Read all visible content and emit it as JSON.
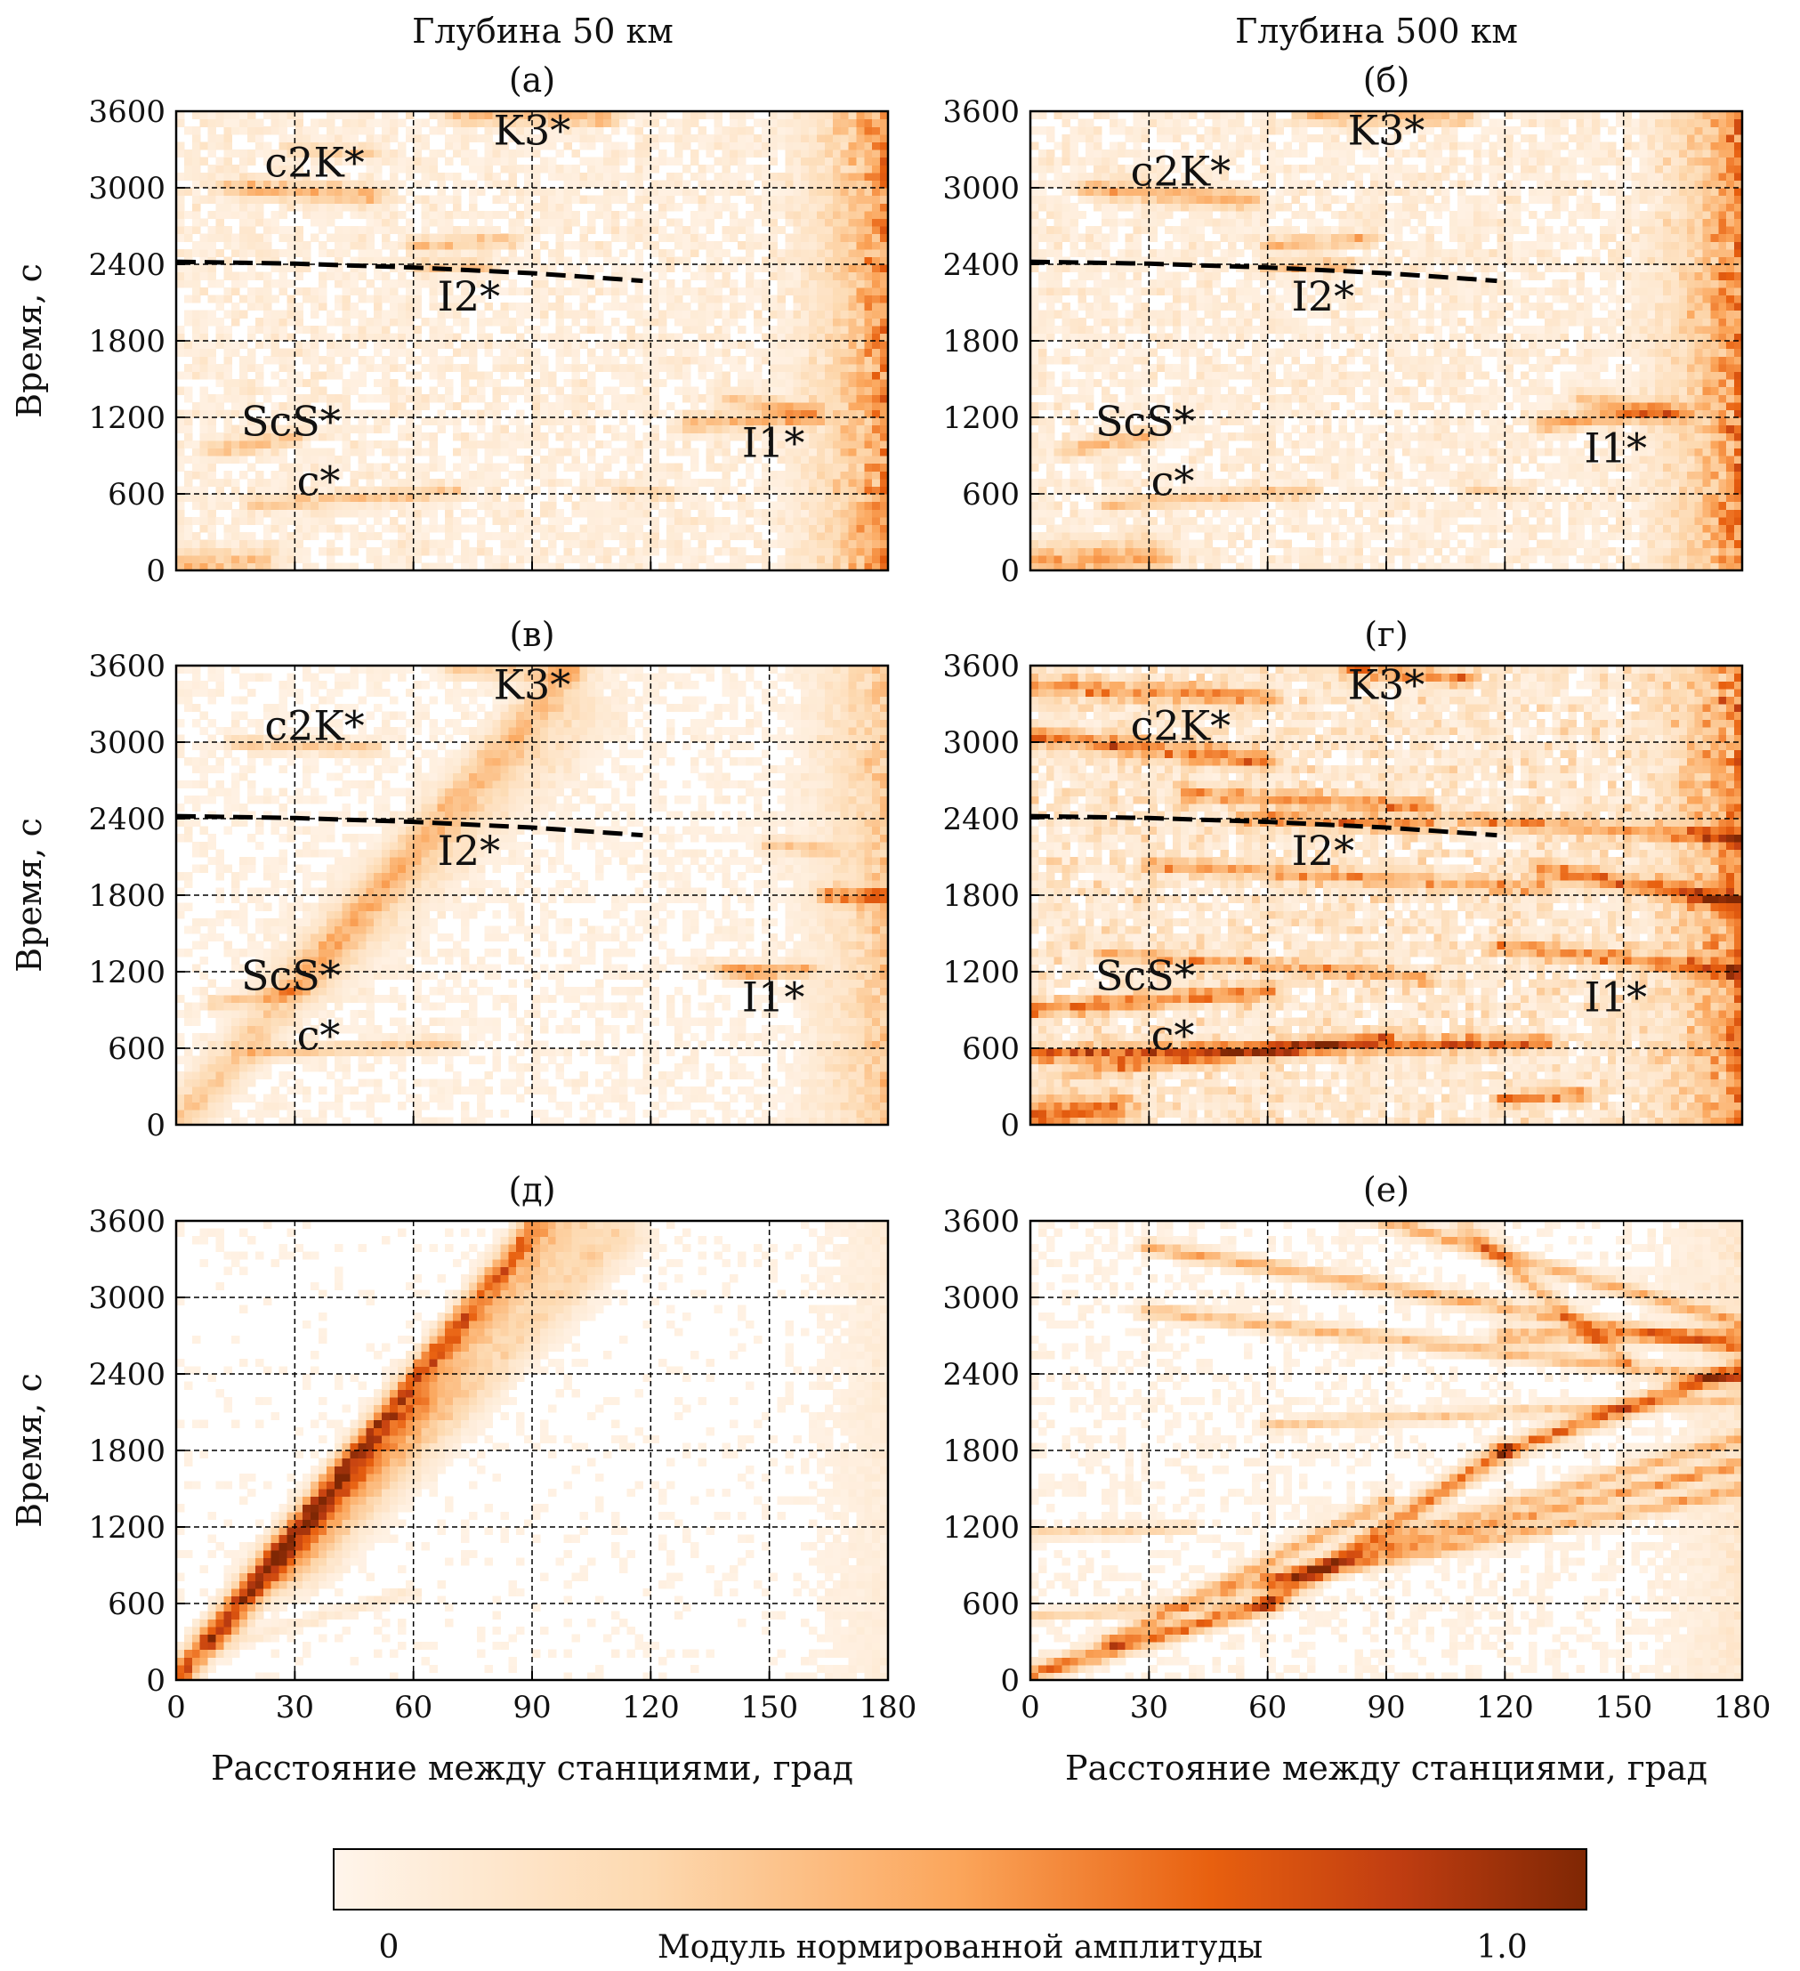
{
  "figure": {
    "column_titles": [
      "Глубина 50 км",
      "Глубина 500 км"
    ],
    "colorbar": {
      "label": "Модуль нормированной амплитуды",
      "min_label": "0",
      "max_label": "1.0",
      "min": 0,
      "max": 1.0
    },
    "colors": {
      "cmap_low": "#fff5eb",
      "cmap_mid": "#f08a2c",
      "cmap_high": "#7f2704",
      "dashed_curve": "#000000",
      "grid": "#000000"
    }
  },
  "chart_data": [
    {
      "type": "heatmap",
      "panel_label": "(а)",
      "column": "Глубина 50 км",
      "ylabel": "Время, с",
      "xlabel": "",
      "xlim": [
        0,
        180
      ],
      "ylim": [
        0,
        3600
      ],
      "xticks": [
        0,
        30,
        60,
        90,
        120,
        150,
        180
      ],
      "yticks": [
        0,
        600,
        1200,
        1800,
        2400,
        3000,
        3600
      ],
      "show_x_tick_labels": false,
      "grid": true,
      "dashed_curve": {
        "x": [
          0,
          30,
          60,
          90,
          118
        ],
        "y": [
          2420,
          2405,
          2375,
          2330,
          2270
        ]
      },
      "phases": [
        {
          "text": "c2K*",
          "x": 35,
          "y": 3200
        },
        {
          "text": "K3*",
          "x": 90,
          "y": 3450
        },
        {
          "text": "I2*",
          "x": 74,
          "y": 2150
        },
        {
          "text": "ScS*",
          "x": 29,
          "y": 1170
        },
        {
          "text": "c*",
          "x": 36,
          "y": 700
        },
        {
          "text": "I1*",
          "x": 151,
          "y": 1000
        }
      ],
      "features": [
        {
          "x0": 15,
          "y0": 3000,
          "x1": 50,
          "y1": 2950,
          "amp": 0.45,
          "w": 14
        },
        {
          "x0": 60,
          "y0": 2550,
          "x1": 85,
          "y1": 2600,
          "amp": 0.35,
          "w": 10
        },
        {
          "x0": 62,
          "y0": 2390,
          "x1": 78,
          "y1": 2380,
          "amp": 0.4,
          "w": 10
        },
        {
          "x0": 70,
          "y0": 3560,
          "x1": 110,
          "y1": 3540,
          "amp": 0.45,
          "w": 10
        },
        {
          "x0": 30,
          "y0": 3300,
          "x1": 50,
          "y1": 3280,
          "amp": 0.3,
          "w": 10
        },
        {
          "x0": 10,
          "y0": 950,
          "x1": 30,
          "y1": 1050,
          "amp": 0.4,
          "w": 12
        },
        {
          "x0": 20,
          "y0": 520,
          "x1": 70,
          "y1": 620,
          "amp": 0.35,
          "w": 10
        },
        {
          "x0": 130,
          "y0": 1150,
          "x1": 160,
          "y1": 1200,
          "amp": 0.45,
          "w": 12
        },
        {
          "x0": 140,
          "y0": 1350,
          "x1": 160,
          "y1": 1250,
          "amp": 0.4,
          "w": 12
        },
        {
          "x0": 112,
          "y0": 640,
          "x1": 125,
          "y1": 600,
          "amp": 0.25,
          "w": 8
        },
        {
          "x0": 0,
          "y0": 40,
          "x1": 20,
          "y1": 80,
          "amp": 0.4,
          "w": 20
        }
      ],
      "right_edge_amp": 0.75,
      "noise_amp": 0.18
    },
    {
      "type": "heatmap",
      "panel_label": "(б)",
      "column": "Глубина 500 км",
      "ylabel": "",
      "xlabel": "",
      "xlim": [
        0,
        180
      ],
      "ylim": [
        0,
        3600
      ],
      "xticks": [
        0,
        30,
        60,
        90,
        120,
        150,
        180
      ],
      "yticks": [
        0,
        600,
        1200,
        1800,
        2400,
        3000,
        3600
      ],
      "show_x_tick_labels": false,
      "grid": true,
      "dashed_curve": {
        "x": [
          0,
          30,
          60,
          90,
          118
        ],
        "y": [
          2420,
          2405,
          2375,
          2330,
          2270
        ]
      },
      "phases": [
        {
          "text": "c2K*",
          "x": 38,
          "y": 3130
        },
        {
          "text": "K3*",
          "x": 90,
          "y": 3450
        },
        {
          "text": "I2*",
          "x": 74,
          "y": 2150
        },
        {
          "text": "ScS*",
          "x": 29,
          "y": 1170
        },
        {
          "text": "c*",
          "x": 36,
          "y": 700
        },
        {
          "text": "I1*",
          "x": 148,
          "y": 960
        }
      ],
      "features": [
        {
          "x0": 15,
          "y0": 3000,
          "x1": 55,
          "y1": 2900,
          "amp": 0.45,
          "w": 14
        },
        {
          "x0": 60,
          "y0": 2550,
          "x1": 85,
          "y1": 2600,
          "amp": 0.4,
          "w": 10
        },
        {
          "x0": 60,
          "y0": 2380,
          "x1": 80,
          "y1": 2400,
          "amp": 0.45,
          "w": 10
        },
        {
          "x0": 70,
          "y0": 3560,
          "x1": 110,
          "y1": 3540,
          "amp": 0.45,
          "w": 10
        },
        {
          "x0": 10,
          "y0": 950,
          "x1": 30,
          "y1": 1050,
          "amp": 0.4,
          "w": 12
        },
        {
          "x0": 20,
          "y0": 520,
          "x1": 70,
          "y1": 620,
          "amp": 0.35,
          "w": 10
        },
        {
          "x0": 130,
          "y0": 1150,
          "x1": 160,
          "y1": 1250,
          "amp": 0.5,
          "w": 12
        },
        {
          "x0": 140,
          "y0": 1350,
          "x1": 165,
          "y1": 1220,
          "amp": 0.45,
          "w": 12
        },
        {
          "x0": 112,
          "y0": 640,
          "x1": 125,
          "y1": 600,
          "amp": 0.25,
          "w": 8
        },
        {
          "x0": 0,
          "y0": 60,
          "x1": 30,
          "y1": 120,
          "amp": 0.5,
          "w": 24
        }
      ],
      "right_edge_amp": 0.8,
      "noise_amp": 0.2
    },
    {
      "type": "heatmap",
      "panel_label": "(в)",
      "column": "Глубина 50 км",
      "ylabel": "Время, с",
      "xlabel": "",
      "xlim": [
        0,
        180
      ],
      "ylim": [
        0,
        3600
      ],
      "xticks": [
        0,
        30,
        60,
        90,
        120,
        150,
        180
      ],
      "yticks": [
        0,
        600,
        1200,
        1800,
        2400,
        3000,
        3600
      ],
      "show_x_tick_labels": false,
      "grid": true,
      "dashed_curve": {
        "x": [
          0,
          30,
          60,
          90,
          118
        ],
        "y": [
          2420,
          2405,
          2375,
          2330,
          2270
        ]
      },
      "phases": [
        {
          "text": "c2K*",
          "x": 35,
          "y": 3130
        },
        {
          "text": "K3*",
          "x": 90,
          "y": 3450
        },
        {
          "text": "I2*",
          "x": 74,
          "y": 2150
        },
        {
          "text": "ScS*",
          "x": 29,
          "y": 1170
        },
        {
          "text": "c*",
          "x": 36,
          "y": 700
        },
        {
          "text": "I1*",
          "x": 151,
          "y": 1000
        }
      ],
      "features": [
        {
          "x0": 0,
          "y0": 0,
          "x1": 100,
          "y1": 3600,
          "amp": 0.35,
          "w": 22
        },
        {
          "x0": 35,
          "y0": 1200,
          "x1": 100,
          "y1": 3200,
          "amp": 0.18,
          "w": 40
        },
        {
          "x0": 15,
          "y0": 3000,
          "x1": 50,
          "y1": 2950,
          "amp": 0.35,
          "w": 10
        },
        {
          "x0": 70,
          "y0": 3560,
          "x1": 100,
          "y1": 3540,
          "amp": 0.35,
          "w": 10
        },
        {
          "x0": 10,
          "y0": 950,
          "x1": 30,
          "y1": 1050,
          "amp": 0.35,
          "w": 10
        },
        {
          "x0": 20,
          "y0": 560,
          "x1": 70,
          "y1": 640,
          "amp": 0.35,
          "w": 10
        },
        {
          "x0": 140,
          "y0": 1200,
          "x1": 160,
          "y1": 1220,
          "amp": 0.45,
          "w": 10
        },
        {
          "x0": 135,
          "y0": 1250,
          "x1": 150,
          "y1": 1180,
          "amp": 0.3,
          "w": 8
        },
        {
          "x0": 150,
          "y0": 2200,
          "x1": 165,
          "y1": 2150,
          "amp": 0.35,
          "w": 10
        },
        {
          "x0": 165,
          "y0": 1800,
          "x1": 180,
          "y1": 1780,
          "amp": 0.6,
          "w": 12
        }
      ],
      "right_edge_amp": 0.45,
      "noise_amp": 0.1
    },
    {
      "type": "heatmap",
      "panel_label": "(г)",
      "column": "Глубина 500 км",
      "ylabel": "",
      "xlabel": "",
      "xlim": [
        0,
        180
      ],
      "ylim": [
        0,
        3600
      ],
      "xticks": [
        0,
        30,
        60,
        90,
        120,
        150,
        180
      ],
      "yticks": [
        0,
        600,
        1200,
        1800,
        2400,
        3000,
        3600
      ],
      "show_x_tick_labels": false,
      "grid": true,
      "dashed_curve": {
        "x": [
          0,
          30,
          60,
          90,
          118
        ],
        "y": [
          2420,
          2405,
          2375,
          2330,
          2270
        ]
      },
      "phases": [
        {
          "text": "c2K*",
          "x": 38,
          "y": 3130
        },
        {
          "text": "K3*",
          "x": 90,
          "y": 3450
        },
        {
          "text": "I2*",
          "x": 74,
          "y": 2150
        },
        {
          "text": "ScS*",
          "x": 29,
          "y": 1170
        },
        {
          "text": "c*",
          "x": 36,
          "y": 700
        },
        {
          "text": "I1*",
          "x": 148,
          "y": 1000
        }
      ],
      "features": [
        {
          "x0": 0,
          "y0": 3050,
          "x1": 60,
          "y1": 2850,
          "amp": 0.65,
          "w": 14
        },
        {
          "x0": 0,
          "y0": 3450,
          "x1": 60,
          "y1": 3350,
          "amp": 0.55,
          "w": 14
        },
        {
          "x0": 40,
          "y0": 2600,
          "x1": 100,
          "y1": 2500,
          "amp": 0.55,
          "w": 12
        },
        {
          "x0": 55,
          "y0": 2400,
          "x1": 100,
          "y1": 2350,
          "amp": 0.6,
          "w": 12
        },
        {
          "x0": 30,
          "y0": 2050,
          "x1": 130,
          "y1": 1850,
          "amp": 0.45,
          "w": 12
        },
        {
          "x0": 0,
          "y0": 900,
          "x1": 60,
          "y1": 1050,
          "amp": 0.65,
          "w": 12
        },
        {
          "x0": 0,
          "y0": 550,
          "x1": 130,
          "y1": 650,
          "amp": 0.7,
          "w": 12
        },
        {
          "x0": 10,
          "y0": 400,
          "x1": 90,
          "y1": 700,
          "amp": 0.5,
          "w": 10
        },
        {
          "x0": 20,
          "y0": 1350,
          "x1": 100,
          "y1": 1150,
          "amp": 0.45,
          "w": 10
        },
        {
          "x0": 120,
          "y0": 1400,
          "x1": 180,
          "y1": 1200,
          "amp": 0.55,
          "w": 12
        },
        {
          "x0": 130,
          "y0": 2000,
          "x1": 180,
          "y1": 1750,
          "amp": 0.65,
          "w": 14
        },
        {
          "x0": 110,
          "y0": 2400,
          "x1": 180,
          "y1": 2250,
          "amp": 0.5,
          "w": 12
        },
        {
          "x0": 120,
          "y0": 200,
          "x1": 140,
          "y1": 250,
          "amp": 0.6,
          "w": 10
        },
        {
          "x0": 0,
          "y0": 80,
          "x1": 20,
          "y1": 120,
          "amp": 0.7,
          "w": 24
        },
        {
          "x0": 80,
          "y0": 3560,
          "x1": 110,
          "y1": 3500,
          "amp": 0.55,
          "w": 10
        }
      ],
      "right_edge_amp": 0.7,
      "noise_amp": 0.35
    },
    {
      "type": "heatmap",
      "panel_label": "(д)",
      "column": "Глубина 50 км",
      "ylabel": "Время, с",
      "xlabel": "Расстояние между станциями, град",
      "xlim": [
        0,
        180
      ],
      "ylim": [
        0,
        3600
      ],
      "xticks": [
        0,
        30,
        60,
        90,
        120,
        150,
        180
      ],
      "yticks": [
        0,
        600,
        1200,
        1800,
        2400,
        3000,
        3600
      ],
      "show_x_tick_labels": true,
      "grid": true,
      "dashed_curve": null,
      "phases": [],
      "features": [
        {
          "x0": 0,
          "y0": 0,
          "x1": 92,
          "y1": 3600,
          "amp": 0.85,
          "w": 14
        },
        {
          "x0": 10,
          "y0": 300,
          "x1": 100,
          "y1": 3600,
          "amp": 0.35,
          "w": 16
        },
        {
          "x0": 30,
          "y0": 900,
          "x1": 110,
          "y1": 3500,
          "amp": 0.3,
          "w": 30
        },
        {
          "x0": 25,
          "y0": 800,
          "x1": 65,
          "y1": 2200,
          "amp": 0.15,
          "w": 30
        },
        {
          "x0": 15,
          "y0": 300,
          "x1": 60,
          "y1": 700,
          "amp": 0.12,
          "w": 8
        }
      ],
      "right_edge_amp": 0.1,
      "noise_amp": 0.05
    },
    {
      "type": "heatmap",
      "panel_label": "(е)",
      "column": "Глубина 500 км",
      "ylabel": "",
      "xlabel": "Расстояние между станциями, град",
      "xlim": [
        0,
        180
      ],
      "ylim": [
        0,
        3600
      ],
      "xticks": [
        0,
        30,
        60,
        90,
        120,
        150,
        180
      ],
      "yticks": [
        0,
        600,
        1200,
        1800,
        2400,
        3000,
        3600
      ],
      "show_x_tick_labels": true,
      "grid": true,
      "dashed_curve": null,
      "phases": [],
      "features": [
        {
          "x0": 0,
          "y0": 50,
          "x1": 60,
          "y1": 600,
          "amp": 0.75,
          "w": 12
        },
        {
          "x0": 60,
          "y0": 600,
          "x1": 120,
          "y1": 1800,
          "amp": 0.7,
          "w": 12
        },
        {
          "x0": 120,
          "y0": 1800,
          "x1": 180,
          "y1": 2450,
          "amp": 0.75,
          "w": 12
        },
        {
          "x0": 20,
          "y0": 300,
          "x1": 90,
          "y1": 1400,
          "amp": 0.5,
          "w": 10
        },
        {
          "x0": 60,
          "y0": 800,
          "x1": 180,
          "y1": 1700,
          "amp": 0.55,
          "w": 10
        },
        {
          "x0": 50,
          "y0": 700,
          "x1": 180,
          "y1": 1500,
          "amp": 0.5,
          "w": 10
        },
        {
          "x0": 90,
          "y0": 1100,
          "x1": 180,
          "y1": 1900,
          "amp": 0.45,
          "w": 10
        },
        {
          "x0": 0,
          "y0": 500,
          "x1": 50,
          "y1": 600,
          "amp": 0.35,
          "w": 8
        },
        {
          "x0": 0,
          "y0": 1150,
          "x1": 40,
          "y1": 1200,
          "amp": 0.3,
          "w": 8
        },
        {
          "x0": 30,
          "y0": 2900,
          "x1": 180,
          "y1": 2350,
          "amp": 0.45,
          "w": 10
        },
        {
          "x0": 30,
          "y0": 3400,
          "x1": 180,
          "y1": 2600,
          "amp": 0.5,
          "w": 10
        },
        {
          "x0": 90,
          "y0": 3600,
          "x1": 180,
          "y1": 2800,
          "amp": 0.5,
          "w": 10
        },
        {
          "x0": 110,
          "y0": 3550,
          "x1": 150,
          "y1": 2500,
          "amp": 0.45,
          "w": 10
        },
        {
          "x0": 60,
          "y0": 2000,
          "x1": 180,
          "y1": 2200,
          "amp": 0.35,
          "w": 8
        },
        {
          "x0": 120,
          "y0": 2700,
          "x1": 180,
          "y1": 2700,
          "amp": 0.5,
          "w": 12
        }
      ],
      "right_edge_amp": 0.15,
      "noise_amp": 0.08
    }
  ]
}
